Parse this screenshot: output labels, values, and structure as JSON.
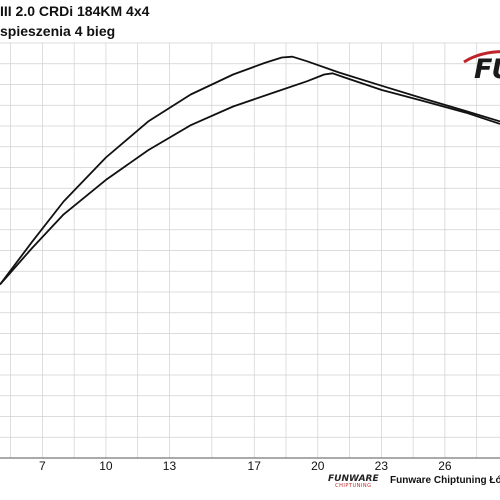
{
  "header": {
    "title_line1": "III 2.0 CRDi 184KM 4x4",
    "title_line2": "spieszenia 4 bieg"
  },
  "logo": {
    "text": "FU",
    "accent_color": "#c0242a"
  },
  "footer": {
    "brand_top": "FUNWARE",
    "brand_bottom": "CHIPTUNING",
    "text": "Funware Chiptuning Łód"
  },
  "chart_data": {
    "type": "line",
    "title": "",
    "xlabel": "",
    "ylabel": "",
    "xlim": [
      5,
      28.6
    ],
    "ylim": [
      0,
      1
    ],
    "x_ticks": [
      7,
      10,
      13,
      17,
      20,
      23,
      26
    ],
    "grid": true,
    "series": [
      {
        "color": "#111111",
        "points": [
          [
            5.0,
            0.418
          ],
          [
            6.5,
            0.52
          ],
          [
            8.0,
            0.618
          ],
          [
            10.0,
            0.724
          ],
          [
            12.0,
            0.811
          ],
          [
            14.0,
            0.876
          ],
          [
            16.0,
            0.924
          ],
          [
            17.5,
            0.952
          ],
          [
            18.3,
            0.965
          ],
          [
            18.8,
            0.967
          ],
          [
            19.5,
            0.956
          ],
          [
            21.0,
            0.929
          ],
          [
            23.0,
            0.897
          ],
          [
            25.0,
            0.866
          ],
          [
            27.0,
            0.836
          ],
          [
            28.6,
            0.811
          ]
        ]
      },
      {
        "color": "#111111",
        "points": [
          [
            5.0,
            0.418
          ],
          [
            6.5,
            0.505
          ],
          [
            8.0,
            0.587
          ],
          [
            10.0,
            0.67
          ],
          [
            12.0,
            0.742
          ],
          [
            14.0,
            0.802
          ],
          [
            16.0,
            0.847
          ],
          [
            18.0,
            0.882
          ],
          [
            19.5,
            0.908
          ],
          [
            20.3,
            0.924
          ],
          [
            20.7,
            0.927
          ],
          [
            21.2,
            0.918
          ],
          [
            23.0,
            0.887
          ],
          [
            25.0,
            0.86
          ],
          [
            27.0,
            0.832
          ],
          [
            28.6,
            0.805
          ]
        ]
      }
    ]
  }
}
